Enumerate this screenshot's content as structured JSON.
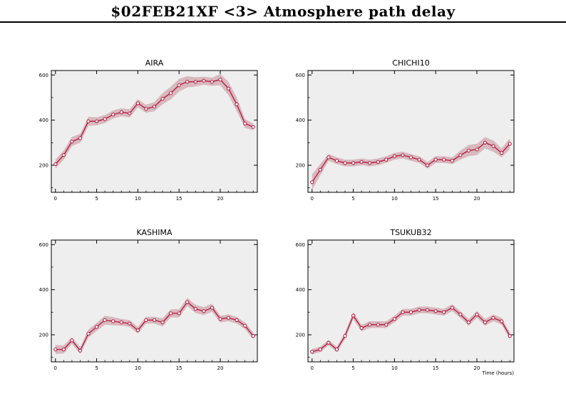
{
  "title": "$02FEB21XF <3>  Atmosphere path delay",
  "colors": {
    "background": "#ffffff",
    "plot_bg": "#eeeeee",
    "line": "#b5123b",
    "band": "#d7b9be",
    "marker_fill": "#ffffff"
  },
  "chart_data": [
    {
      "type": "line",
      "title": "AIRA",
      "xlabel": "",
      "ylabel": "",
      "xlim": [
        -0.5,
        24.5
      ],
      "ylim": [
        80,
        620
      ],
      "x_ticks": [
        0,
        5,
        10,
        15,
        20
      ],
      "y_ticks": [
        200,
        400,
        600
      ],
      "x": [
        0,
        1,
        2,
        3,
        4,
        5,
        6,
        7,
        8,
        9,
        10,
        11,
        12,
        13,
        14,
        15,
        16,
        17,
        18,
        19,
        20,
        21,
        22,
        23,
        24
      ],
      "y": [
        205,
        245,
        305,
        320,
        395,
        395,
        405,
        425,
        435,
        430,
        475,
        450,
        460,
        495,
        520,
        555,
        570,
        570,
        575,
        570,
        580,
        540,
        470,
        385,
        370
      ],
      "band_halfwidth": [
        20,
        20,
        20,
        20,
        20,
        18,
        18,
        18,
        18,
        18,
        18,
        18,
        20,
        25,
        28,
        28,
        25,
        20,
        18,
        18,
        25,
        30,
        30,
        20,
        15
      ]
    },
    {
      "type": "line",
      "title": "CHICHI10",
      "xlabel": "",
      "ylabel": "",
      "xlim": [
        -0.5,
        24.5
      ],
      "ylim": [
        80,
        620
      ],
      "x_ticks": [
        0,
        5,
        10,
        15,
        20
      ],
      "y_ticks": [
        200,
        400,
        600
      ],
      "x": [
        0,
        1,
        2,
        3,
        4,
        5,
        6,
        7,
        8,
        9,
        10,
        11,
        12,
        13,
        14,
        15,
        16,
        17,
        18,
        19,
        20,
        21,
        22,
        23,
        24
      ],
      "y": [
        125,
        180,
        235,
        220,
        210,
        210,
        215,
        210,
        215,
        225,
        240,
        245,
        235,
        225,
        200,
        225,
        225,
        220,
        245,
        265,
        270,
        300,
        285,
        255,
        295
      ],
      "band_halfwidth": [
        35,
        25,
        15,
        15,
        15,
        15,
        15,
        15,
        15,
        15,
        15,
        15,
        15,
        15,
        15,
        15,
        15,
        15,
        20,
        25,
        25,
        25,
        25,
        20,
        25
      ]
    },
    {
      "type": "line",
      "title": "KASHIMA",
      "xlabel": "",
      "ylabel": "",
      "xlim": [
        -0.5,
        24.5
      ],
      "ylim": [
        80,
        620
      ],
      "x_ticks": [
        0,
        5,
        10,
        15,
        20
      ],
      "y_ticks": [
        200,
        400,
        600
      ],
      "x": [
        0,
        1,
        2,
        3,
        4,
        5,
        6,
        7,
        8,
        9,
        10,
        11,
        12,
        13,
        14,
        15,
        16,
        17,
        18,
        19,
        20,
        21,
        22,
        23,
        24
      ],
      "y": [
        135,
        135,
        175,
        130,
        205,
        235,
        265,
        260,
        255,
        250,
        220,
        265,
        265,
        255,
        295,
        295,
        345,
        315,
        305,
        320,
        270,
        275,
        265,
        240,
        195
      ],
      "band_halfwidth": [
        20,
        18,
        15,
        15,
        18,
        18,
        20,
        18,
        15,
        15,
        15,
        15,
        15,
        18,
        18,
        18,
        18,
        18,
        18,
        18,
        15,
        15,
        15,
        15,
        15
      ]
    },
    {
      "type": "line",
      "title": "TSUKUB32",
      "xlabel": "Time (hours)",
      "ylabel": "",
      "xlim": [
        -0.5,
        24.5
      ],
      "ylim": [
        80,
        620
      ],
      "x_ticks": [
        0,
        5,
        10,
        15,
        20
      ],
      "y_ticks": [
        200,
        400,
        600
      ],
      "x": [
        0,
        1,
        2,
        3,
        4,
        5,
        6,
        7,
        8,
        9,
        10,
        11,
        12,
        13,
        14,
        15,
        16,
        17,
        18,
        19,
        20,
        21,
        22,
        23,
        24
      ],
      "y": [
        125,
        135,
        165,
        135,
        195,
        285,
        230,
        245,
        245,
        245,
        270,
        300,
        300,
        310,
        310,
        305,
        300,
        320,
        290,
        255,
        290,
        255,
        275,
        260,
        195
      ],
      "band_halfwidth": [
        12,
        12,
        12,
        12,
        15,
        15,
        15,
        15,
        15,
        15,
        15,
        15,
        15,
        15,
        15,
        15,
        15,
        15,
        15,
        15,
        15,
        15,
        15,
        15,
        15
      ]
    }
  ]
}
